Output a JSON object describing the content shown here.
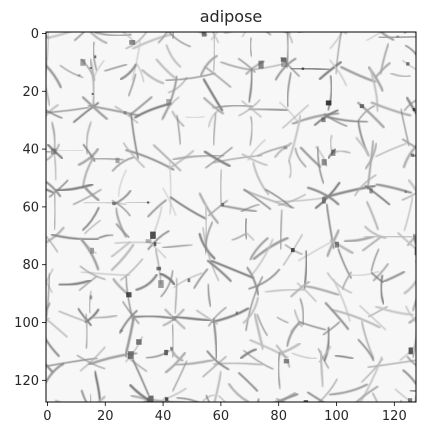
{
  "chart_data": {
    "type": "heatmap",
    "title": "adipose",
    "xlabel": "",
    "ylabel": "",
    "image_size": [
      128,
      128
    ],
    "colormap": "gray",
    "xlim": [
      0,
      127
    ],
    "ylim": [
      127,
      0
    ],
    "y_inverted": true,
    "grid": false,
    "x_ticks": [
      0,
      20,
      40,
      60,
      80,
      100,
      120
    ],
    "y_ticks": [
      0,
      20,
      40,
      60,
      80,
      100,
      120
    ],
    "x_tick_labels": [
      "0",
      "20",
      "40",
      "60",
      "80",
      "100",
      "120"
    ],
    "y_tick_labels": [
      "0",
      "20",
      "40",
      "60",
      "80",
      "100",
      "120"
    ],
    "content": "grayscale histology image of adipose tissue: white polygonal fat cells outlined by thin gray-black membrane boundaries"
  }
}
